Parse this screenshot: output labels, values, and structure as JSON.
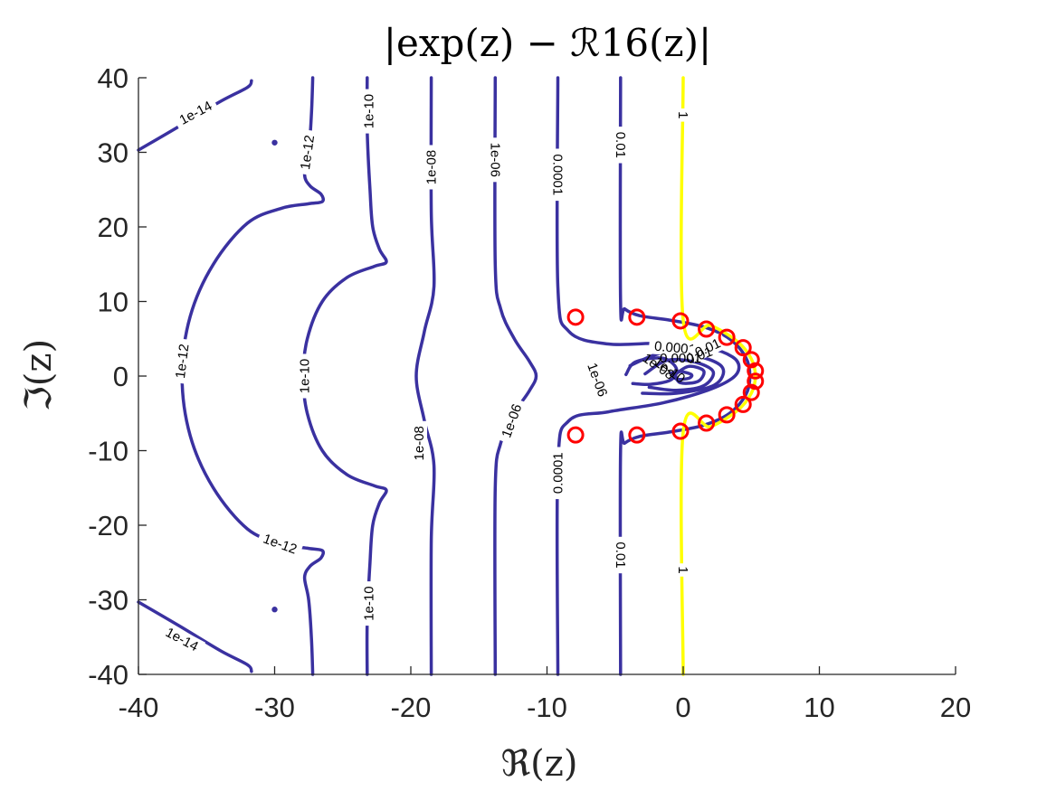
{
  "chart_data": {
    "type": "contour",
    "title": "|exp(z) − ℛ16(z)|",
    "xlabel": "ℜ(z)",
    "ylabel": "ℑ(z)",
    "xlim": [
      -40,
      20
    ],
    "ylim": [
      -40,
      40
    ],
    "xticks": [
      "-40",
      "-30",
      "-20",
      "-10",
      "0",
      "10",
      "20"
    ],
    "yticks": [
      "40",
      "30",
      "20",
      "10",
      "0",
      "-10",
      "-20",
      "-30",
      "-40"
    ],
    "grid": false,
    "colors": {
      "contour": "#3a31a0",
      "contour_unit": "#ffff00",
      "poles": "#ff0000"
    },
    "contours": [
      {
        "level": "1e-14",
        "color": "#3a31a0",
        "curves": [
          [
            [
              -40,
              30.3
            ],
            [
              -37,
              33.5
            ],
            [
              -34,
              36.8
            ],
            [
              -32,
              38.7
            ],
            [
              -31.7,
              39.6
            ]
          ],
          [
            [
              -40,
              -30.3
            ],
            [
              -37,
              -33.5
            ],
            [
              -34,
              -36.8
            ],
            [
              -32,
              -38.7
            ],
            [
              -31.7,
              -39.6
            ]
          ]
        ],
        "labels": [
          {
            "x": -35.8,
            "y": 35.3,
            "rot": -28
          },
          {
            "x": -36.8,
            "y": -35.3,
            "rot": 28
          }
        ]
      },
      {
        "level": "1e-12",
        "color": "#3a31a0",
        "curves": [
          [
            [
              -27.2,
              40
            ],
            [
              -27.3,
              35
            ],
            [
              -27.5,
              30
            ],
            [
              -27.8,
              27
            ],
            [
              -27.4,
              25.5
            ],
            [
              -26.6,
              24.4
            ],
            [
              -26.5,
              23.4
            ],
            [
              -27.5,
              23.1
            ],
            [
              -29.5,
              22.5
            ],
            [
              -32,
              20.5
            ],
            [
              -34.5,
              15
            ],
            [
              -36.2,
              8
            ],
            [
              -36.8,
              0
            ],
            [
              -36.2,
              -8
            ],
            [
              -34.5,
              -15
            ],
            [
              -32,
              -20.5
            ],
            [
              -29.5,
              -22.5
            ],
            [
              -27.5,
              -23.1
            ],
            [
              -26.5,
              -23.4
            ],
            [
              -26.6,
              -24.4
            ],
            [
              -27.4,
              -25.5
            ],
            [
              -27.8,
              -27
            ],
            [
              -27.5,
              -30
            ],
            [
              -27.3,
              -35
            ],
            [
              -27.2,
              -40
            ]
          ]
        ],
        "labels": [
          {
            "x": -36.8,
            "y": 2,
            "rot": -83
          },
          {
            "x": -27.6,
            "y": 30,
            "rot": -82
          },
          {
            "x": -29.6,
            "y": -22.5,
            "rot": 20
          }
        ]
      },
      {
        "level": "1e-10",
        "color": "#3a31a0",
        "curves": [
          [
            [
              -23.2,
              40
            ],
            [
              -23.2,
              33
            ],
            [
              -23.0,
              25
            ],
            [
              -22.8,
              20
            ],
            [
              -22.3,
              17
            ],
            [
              -21.8,
              15.3
            ],
            [
              -22.7,
              14.7
            ],
            [
              -24.7,
              13.2
            ],
            [
              -26.5,
              10
            ],
            [
              -27.6,
              5
            ],
            [
              -27.9,
              0
            ],
            [
              -27.6,
              -5
            ],
            [
              -26.5,
              -10
            ],
            [
              -24.7,
              -13.2
            ],
            [
              -22.7,
              -14.7
            ],
            [
              -21.8,
              -15.3
            ],
            [
              -22.3,
              -17
            ],
            [
              -22.8,
              -20
            ],
            [
              -23.0,
              -25
            ],
            [
              -23.2,
              -33
            ],
            [
              -23.2,
              -40
            ]
          ]
        ],
        "labels": [
          {
            "x": -23.1,
            "y": 35.5,
            "rot": -90
          },
          {
            "x": -27.8,
            "y": 0,
            "rot": -90
          },
          {
            "x": -23.1,
            "y": -30.5,
            "rot": -90
          }
        ]
      },
      {
        "level": "1e-08",
        "color": "#3a31a0",
        "curves": [
          [
            [
              -18.5,
              40
            ],
            [
              -18.5,
              22
            ],
            [
              -18.3,
              12
            ],
            [
              -19.0,
              6
            ],
            [
              -19.6,
              0
            ],
            [
              -19.0,
              -6
            ],
            [
              -18.3,
              -12
            ],
            [
              -18.5,
              -22
            ],
            [
              -18.5,
              -40
            ]
          ]
        ],
        "labels": [
          {
            "x": -18.5,
            "y": 28,
            "rot": -90
          },
          {
            "x": -19.4,
            "y": -9,
            "rot": -90
          }
        ]
      },
      {
        "level": "1e-06",
        "color": "#3a31a0",
        "curves": [
          [
            [
              -13.8,
              40
            ],
            [
              -13.8,
              15
            ],
            [
              -13.4,
              9
            ],
            [
              -12.4,
              5
            ],
            [
              -11.3,
              2
            ],
            [
              -10.8,
              0
            ],
            [
              -11.3,
              -2
            ],
            [
              -12.4,
              -5
            ],
            [
              -13.4,
              -9
            ],
            [
              -13.8,
              -15
            ],
            [
              -13.8,
              -40
            ]
          ],
          [
            [
              -4.2,
              0.2
            ],
            [
              -3.5,
              1.9
            ],
            [
              -1.5,
              2.4
            ],
            [
              -0.5,
              1.0
            ],
            [
              -0.9,
              -0.5
            ],
            [
              -2.4,
              -1.1
            ],
            [
              -3.7,
              -1.0
            ]
          ]
        ],
        "labels": [
          {
            "x": -13.8,
            "y": 29,
            "rot": 90
          },
          {
            "x": -12.6,
            "y": -6,
            "rot": -70
          },
          {
            "x": -6.3,
            "y": -0.5,
            "rot": 70
          }
        ]
      },
      {
        "level": "0.0001",
        "color": "#3a31a0",
        "curves": [
          [
            [
              -9.2,
              40
            ],
            [
              -9.2,
              12
            ],
            [
              -8.4,
              6
            ],
            [
              -5.5,
              4.3
            ],
            [
              -1.5,
              4.4
            ],
            [
              1.8,
              3.8
            ],
            [
              3.6,
              2.6
            ],
            [
              4.1,
              1.2
            ],
            [
              3.6,
              -0.3
            ],
            [
              1.8,
              -1.9
            ],
            [
              -1.5,
              -3.6
            ],
            [
              -5.5,
              -4.8
            ],
            [
              -8.4,
              -6
            ],
            [
              -9.2,
              -12
            ],
            [
              -9.2,
              -40
            ]
          ]
        ],
        "labels": [
          {
            "x": -9.2,
            "y": 27,
            "rot": 90
          },
          {
            "x": -9.2,
            "y": -13,
            "rot": -90
          },
          {
            "x": -0.6,
            "y": 3.8,
            "rot": 5
          }
        ]
      },
      {
        "level": "0.01",
        "color": "#3a31a0",
        "curves": [
          [
            [
              -4.6,
              40
            ],
            [
              -4.6,
              10
            ],
            [
              -4.3,
              9
            ],
            [
              -3.2,
              8.1
            ],
            [
              -1,
              7.5
            ],
            [
              1.5,
              6.6
            ],
            [
              3.4,
              5
            ],
            [
              4.6,
              2.5
            ],
            [
              4.9,
              0
            ],
            [
              4.6,
              -2.5
            ],
            [
              3.4,
              -5
            ],
            [
              1.5,
              -6.6
            ],
            [
              -1,
              -7.5
            ],
            [
              -3.2,
              -8.1
            ],
            [
              -4.3,
              -9
            ],
            [
              -4.6,
              -10
            ],
            [
              -4.6,
              -40
            ]
          ]
        ],
        "labels": [
          {
            "x": -4.6,
            "y": 31,
            "rot": 90
          },
          {
            "x": -4.6,
            "y": -24,
            "rot": 90
          },
          {
            "x": 1.8,
            "y": 3.8,
            "rot": -25
          }
        ]
      },
      {
        "level": "1",
        "color": "#ffff00",
        "curves": [
          [
            [
              0,
              40
            ],
            [
              0,
              7.5
            ],
            [
              2,
              6.8
            ],
            [
              4,
              4.6
            ],
            [
              5,
              2.3
            ],
            [
              5.3,
              0
            ],
            [
              5,
              -2.3
            ],
            [
              4,
              -4.6
            ],
            [
              2,
              -6.8
            ],
            [
              0,
              -7.5
            ],
            [
              0,
              -40
            ]
          ]
        ],
        "labels": [
          {
            "x": 0,
            "y": 35,
            "rot": 90
          },
          {
            "x": 0,
            "y": -26,
            "rot": 90
          }
        ]
      },
      {
        "level": "inner",
        "color": "#3a31a0",
        "curves": [
          [
            [
              -3.9,
              1.4
            ],
            [
              -1.5,
              3.1
            ],
            [
              1.2,
              2.6
            ],
            [
              2.9,
              1.1
            ],
            [
              2.3,
              -1.2
            ],
            [
              -0.5,
              -2.3
            ],
            [
              -3.0,
              -2.3
            ]
          ],
          [
            [
              -2.8,
              0.3
            ],
            [
              -1.2,
              2.1
            ],
            [
              0.8,
              1.9
            ],
            [
              2.2,
              0.6
            ],
            [
              1.5,
              -1.3
            ],
            [
              -0.5,
              -1.9
            ],
            [
              -2.5,
              -1.5
            ]
          ],
          [
            [
              -0.6,
              0.2
            ],
            [
              0.4,
              1.3
            ],
            [
              1.5,
              0.7
            ],
            [
              1.1,
              -0.7
            ],
            [
              -0.2,
              -0.9
            ],
            [
              -0.6,
              0.2
            ]
          ],
          [
            [
              -0.9,
              0.4
            ],
            [
              -0.2,
              0.6
            ],
            [
              0.6,
              0.2
            ],
            [
              0.4,
              -0.3
            ],
            [
              -0.5,
              -0.4
            ],
            [
              -0.9,
              0.4
            ]
          ]
        ],
        "labels": [
          {
            "x": -2.0,
            "y": 0.8,
            "rot": 35
          },
          {
            "x": -1.2,
            "y": 0.3,
            "rot": 35
          },
          {
            "x": -0.2,
            "y": 1.8,
            "rot": 0
          },
          {
            "x": 1.3,
            "y": 2.2,
            "rot": -20
          }
        ]
      }
    ],
    "isolated_points": [
      {
        "x": -30,
        "y": 31.3
      },
      {
        "x": -30,
        "y": -31.3
      }
    ],
    "poles": [
      {
        "x": -7.9,
        "y": 7.9
      },
      {
        "x": -3.4,
        "y": 7.9
      },
      {
        "x": -0.2,
        "y": 7.4
      },
      {
        "x": 1.7,
        "y": 6.3
      },
      {
        "x": 3.2,
        "y": 5.2
      },
      {
        "x": 4.4,
        "y": 3.8
      },
      {
        "x": 5.0,
        "y": 2.2
      },
      {
        "x": 5.3,
        "y": 0.7
      },
      {
        "x": 5.3,
        "y": -0.7
      },
      {
        "x": 5.0,
        "y": -2.2
      },
      {
        "x": 4.4,
        "y": -3.8
      },
      {
        "x": 3.2,
        "y": -5.2
      },
      {
        "x": 1.7,
        "y": -6.3
      },
      {
        "x": -0.2,
        "y": -7.4
      },
      {
        "x": -3.4,
        "y": -7.9
      },
      {
        "x": -7.9,
        "y": -7.9
      }
    ]
  }
}
